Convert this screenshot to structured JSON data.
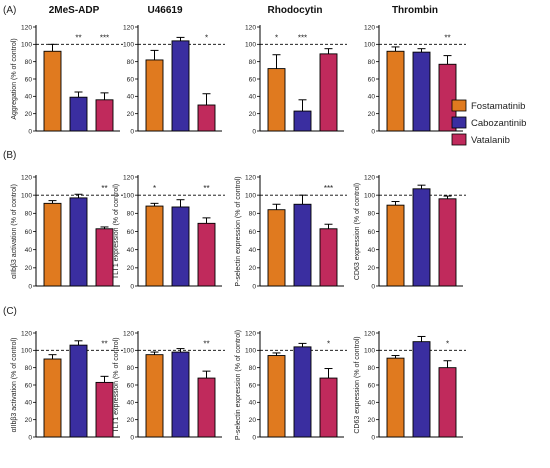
{
  "colors": {
    "Fostamatinib": "#e07a1f",
    "Cabozantinib": "#3a2ea0",
    "Vatalanib": "#c02a5c",
    "axis": "#000000"
  },
  "legend": {
    "placement": "right",
    "items": [
      "Fostamatinib",
      "Cabozantinib",
      "Vatalanib"
    ]
  },
  "panel_labels": [
    "(A)",
    "(B)",
    "(C)"
  ],
  "column_titles": [
    "2MeS-ADP",
    "U46619",
    "Rhodocytin",
    "Thrombin"
  ],
  "y_ticks": [
    "0",
    "20",
    "40",
    "60",
    "80",
    "100",
    "120"
  ],
  "chart_data": [
    {
      "panel": "A",
      "column": "2MeS-ADP",
      "type": "bar",
      "ylabel": "Aggregation (% of control)",
      "ylim": [
        0,
        120
      ],
      "reference_line": 100,
      "categories": [
        "Fostamatinib",
        "Cabozantinib",
        "Vatalanib"
      ],
      "values": [
        92,
        39,
        36
      ],
      "errors": [
        8,
        6,
        8
      ],
      "significance": [
        "",
        "**",
        "***"
      ]
    },
    {
      "panel": "A",
      "column": "U46619",
      "type": "bar",
      "ylabel": "",
      "ylim": [
        0,
        120
      ],
      "reference_line": 100,
      "categories": [
        "Fostamatinib",
        "Cabozantinib",
        "Vatalanib"
      ],
      "values": [
        82,
        104,
        30
      ],
      "errors": [
        11,
        4,
        13
      ],
      "significance": [
        "",
        "",
        "*"
      ]
    },
    {
      "panel": "A",
      "column": "Rhodocytin",
      "type": "bar",
      "ylabel": "",
      "ylim": [
        0,
        120
      ],
      "reference_line": 100,
      "categories": [
        "Fostamatinib",
        "Cabozantinib",
        "Vatalanib"
      ],
      "values": [
        72,
        23,
        89
      ],
      "errors": [
        16,
        13,
        6
      ],
      "significance": [
        "*",
        "***",
        ""
      ]
    },
    {
      "panel": "A",
      "column": "Thrombin",
      "type": "bar",
      "ylabel": "",
      "ylim": [
        0,
        120
      ],
      "reference_line": 100,
      "categories": [
        "Fostamatinib",
        "Cabozantinib",
        "Vatalanib"
      ],
      "values": [
        92,
        91,
        77
      ],
      "errors": [
        5,
        4,
        10
      ],
      "significance": [
        "",
        "",
        "**"
      ]
    },
    {
      "panel": "B",
      "column": "2MeS-ADP",
      "type": "bar",
      "ylabel": "αIIbβ3 activation (% of control)",
      "ylim": [
        0,
        120
      ],
      "reference_line": 100,
      "categories": [
        "Fostamatinib",
        "Cabozantinib",
        "Vatalanib"
      ],
      "values": [
        91,
        97,
        63
      ],
      "errors": [
        3,
        4,
        2
      ],
      "significance": [
        "",
        "",
        "**"
      ]
    },
    {
      "panel": "B",
      "column": "U46619",
      "type": "bar",
      "ylabel": "TLT1 expression (% of control)",
      "ylim": [
        0,
        120
      ],
      "reference_line": 100,
      "categories": [
        "Fostamatinib",
        "Cabozantinib",
        "Vatalanib"
      ],
      "values": [
        88,
        87,
        69
      ],
      "errors": [
        3,
        8,
        6
      ],
      "significance": [
        "*",
        "",
        "**"
      ]
    },
    {
      "panel": "B",
      "column": "Rhodocytin",
      "type": "bar",
      "ylabel": "P-selectin expression (% of control)",
      "ylim": [
        0,
        120
      ],
      "reference_line": 100,
      "categories": [
        "Fostamatinib",
        "Cabozantinib",
        "Vatalanib"
      ],
      "values": [
        84,
        90,
        63
      ],
      "errors": [
        6,
        10,
        5
      ],
      "significance": [
        "",
        "",
        "***"
      ]
    },
    {
      "panel": "B",
      "column": "Thrombin",
      "type": "bar",
      "ylabel": "CD63 expression (% of control)",
      "ylim": [
        0,
        120
      ],
      "reference_line": 100,
      "categories": [
        "Fostamatinib",
        "Cabozantinib",
        "Vatalanib"
      ],
      "values": [
        89,
        107,
        96
      ],
      "errors": [
        4,
        4,
        3
      ],
      "significance": [
        "",
        "",
        ""
      ]
    },
    {
      "panel": "C",
      "column": "2MeS-ADP",
      "type": "bar",
      "ylabel": "αIIbβ3 activation (% of control)",
      "ylim": [
        0,
        120
      ],
      "reference_line": 100,
      "categories": [
        "Fostamatinib",
        "Cabozantinib",
        "Vatalanib"
      ],
      "values": [
        90,
        106,
        63
      ],
      "errors": [
        5,
        5,
        7
      ],
      "significance": [
        "",
        "",
        "**"
      ]
    },
    {
      "panel": "C",
      "column": "U46619",
      "type": "bar",
      "ylabel": "TLT1 expression (% of control)",
      "ylim": [
        0,
        120
      ],
      "reference_line": 100,
      "categories": [
        "Fostamatinib",
        "Cabozantinib",
        "Vatalanib"
      ],
      "values": [
        95,
        98,
        68
      ],
      "errors": [
        3,
        4,
        8
      ],
      "significance": [
        "",
        "",
        "**"
      ]
    },
    {
      "panel": "C",
      "column": "Rhodocytin",
      "type": "bar",
      "ylabel": "P-selectin expression (% of control)",
      "ylim": [
        0,
        120
      ],
      "reference_line": 100,
      "categories": [
        "Fostamatinib",
        "Cabozantinib",
        "Vatalanib"
      ],
      "values": [
        94,
        104,
        68
      ],
      "errors": [
        3,
        4,
        11
      ],
      "significance": [
        "",
        "",
        "*"
      ]
    },
    {
      "panel": "C",
      "column": "Thrombin",
      "type": "bar",
      "ylabel": "CD63 expression (% of control)",
      "ylim": [
        0,
        120
      ],
      "reference_line": 100,
      "categories": [
        "Fostamatinib",
        "Cabozantinib",
        "Vatalanib"
      ],
      "values": [
        91,
        110,
        80
      ],
      "errors": [
        3,
        6,
        8
      ],
      "significance": [
        "",
        "",
        "*"
      ]
    }
  ]
}
